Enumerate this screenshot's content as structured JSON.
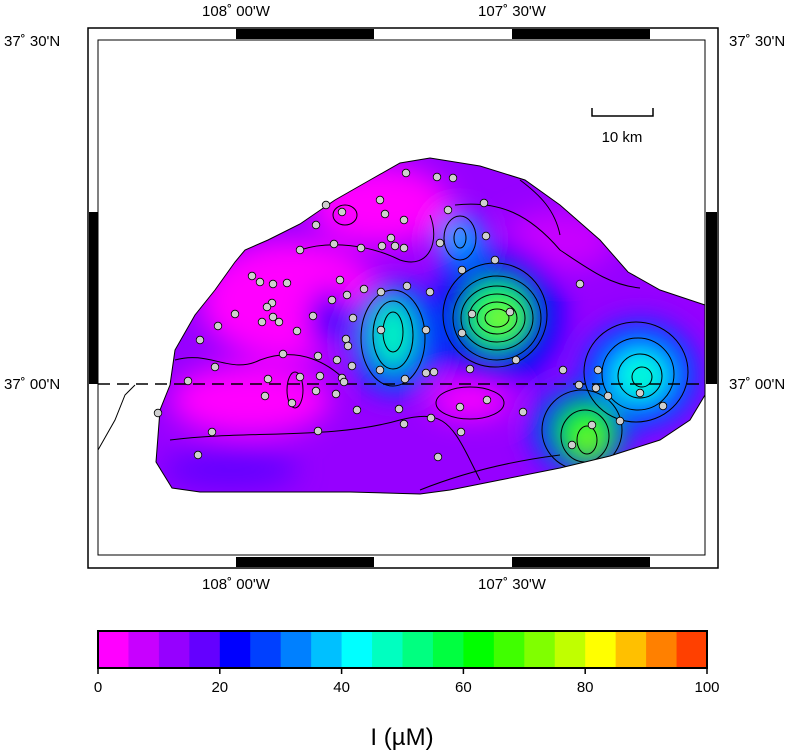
{
  "map": {
    "lon_labels": {
      "west": "108˚ 00'W",
      "east": "107˚ 30'W"
    },
    "lat_labels": {
      "north": "37˚ 30'N",
      "south": "37˚ 00'N"
    },
    "scale_bar_label": "10 km",
    "parallel_line": {
      "latitude": "37˚ 00'N",
      "style": "dashed"
    },
    "sample_marker_color": "#cfcfcf"
  },
  "colorbar": {
    "title": "I (µM)",
    "min": 0,
    "max": 100,
    "tick_values": [
      "0",
      "20",
      "40",
      "60",
      "80",
      "100"
    ],
    "bins": [
      {
        "range": [
          0,
          5
        ],
        "color": "#ff00ff"
      },
      {
        "range": [
          5,
          10
        ],
        "color": "#c800ff"
      },
      {
        "range": [
          10,
          15
        ],
        "color": "#9600ff"
      },
      {
        "range": [
          15,
          20
        ],
        "color": "#6400ff"
      },
      {
        "range": [
          20,
          25
        ],
        "color": "#0000ff"
      },
      {
        "range": [
          25,
          30
        ],
        "color": "#0040ff"
      },
      {
        "range": [
          30,
          35
        ],
        "color": "#0080ff"
      },
      {
        "range": [
          35,
          40
        ],
        "color": "#00c0ff"
      },
      {
        "range": [
          40,
          45
        ],
        "color": "#00ffff"
      },
      {
        "range": [
          45,
          50
        ],
        "color": "#00ffc0"
      },
      {
        "range": [
          50,
          55
        ],
        "color": "#00ff80"
      },
      {
        "range": [
          55,
          60
        ],
        "color": "#00ff40"
      },
      {
        "range": [
          60,
          65
        ],
        "color": "#00ff00"
      },
      {
        "range": [
          65,
          70
        ],
        "color": "#40ff00"
      },
      {
        "range": [
          70,
          75
        ],
        "color": "#80ff00"
      },
      {
        "range": [
          75,
          80
        ],
        "color": "#c0ff00"
      },
      {
        "range": [
          80,
          85
        ],
        "color": "#ffff00"
      },
      {
        "range": [
          85,
          90
        ],
        "color": "#ffc000"
      },
      {
        "range": [
          90,
          95
        ],
        "color": "#ff8000"
      },
      {
        "range": [
          95,
          100
        ],
        "color": "#ff4000"
      }
    ]
  }
}
